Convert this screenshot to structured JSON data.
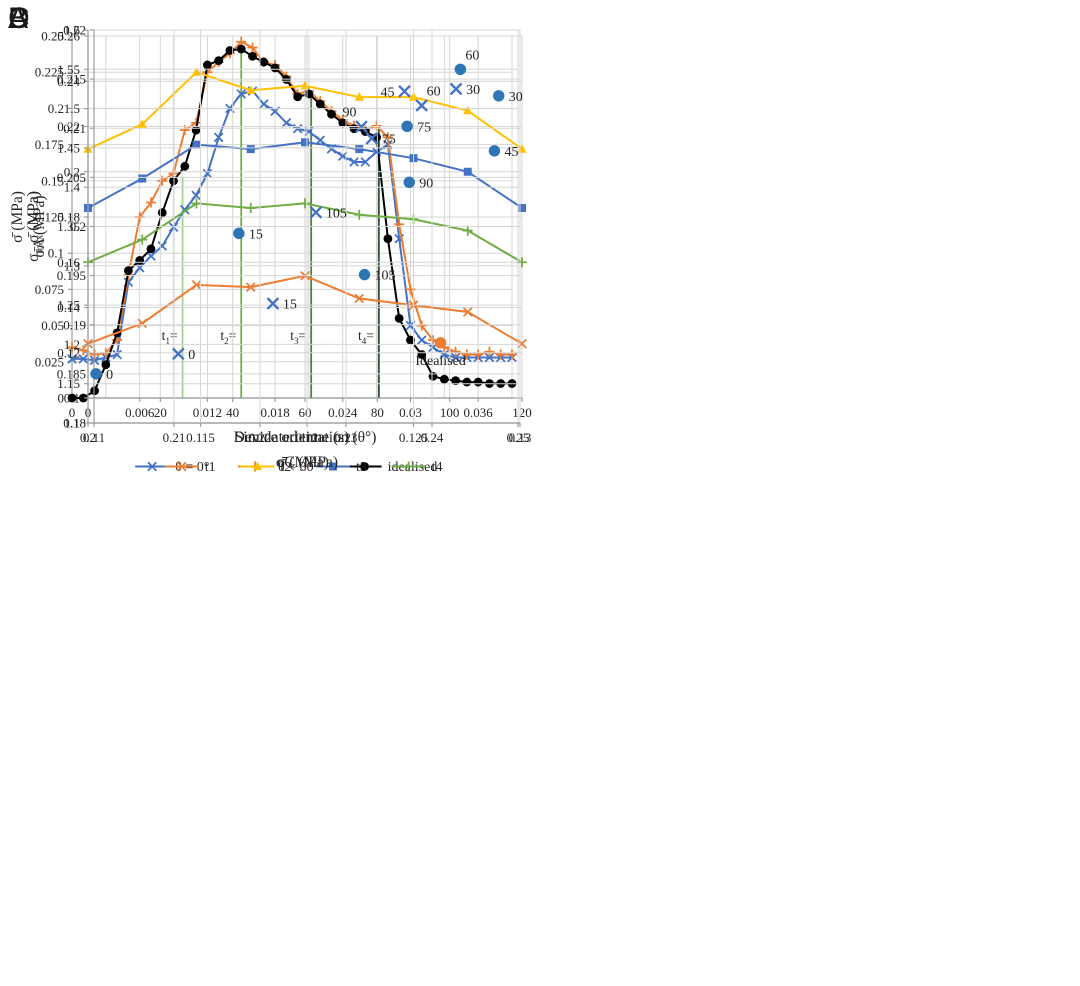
{
  "figure": {
    "background": "#ffffff"
  },
  "chart_data": [
    {
      "panel_label": "A",
      "type": "line",
      "xlabel": "Simulated time (s)",
      "ylabel": "σ̄ (MPa)",
      "xlim": [
        0,
        0.039
      ],
      "x_tick_step": 0.006,
      "x_grid_step": 0.003,
      "ylim": [
        0,
        0.25
      ],
      "y_tick_step": 0.025,
      "y_grid_step": 0.025,
      "legend": true,
      "x": [
        0,
        0.001,
        0.002,
        0.003,
        0.004,
        0.005,
        0.006,
        0.007,
        0.008,
        0.009,
        0.01,
        0.011,
        0.012,
        0.013,
        0.014,
        0.015,
        0.016,
        0.017,
        0.018,
        0.019,
        0.02,
        0.021,
        0.022,
        0.023,
        0.024,
        0.025,
        0.026,
        0.027,
        0.028,
        0.029,
        0.03,
        0.031,
        0.032,
        0.033,
        0.034,
        0.035,
        0.036,
        0.037,
        0.038,
        0.039
      ],
      "series": [
        {
          "name": "θ = 0°",
          "color": "#4472C4",
          "marker": "x",
          "values": [
            0.027,
            0.027,
            0.026,
            0.028,
            0.03,
            0.08,
            0.09,
            0.098,
            0.105,
            0.118,
            0.13,
            0.14,
            0.155,
            0.18,
            0.2,
            0.21,
            0.212,
            0.203,
            0.198,
            0.19,
            0.186,
            0.184,
            0.178,
            0.172,
            0.167,
            0.163,
            0.163,
            0.17,
            0.175,
            0.11,
            0.05,
            0.04,
            0.035,
            0.03,
            0.028,
            0.028,
            0.028,
            0.028,
            0.028,
            0.028
          ]
        },
        {
          "name": "θ = 30°",
          "color": "#ED7D31",
          "marker": "plus",
          "values": [
            0.035,
            0.033,
            0.03,
            0.031,
            0.04,
            0.085,
            0.125,
            0.135,
            0.15,
            0.155,
            0.185,
            0.19,
            0.225,
            0.232,
            0.238,
            0.246,
            0.242,
            0.232,
            0.23,
            0.222,
            0.21,
            0.212,
            0.205,
            0.198,
            0.192,
            0.188,
            0.185,
            0.188,
            0.18,
            0.12,
            0.075,
            0.05,
            0.04,
            0.035,
            0.032,
            0.03,
            0.03,
            0.032,
            0.03,
            0.03
          ]
        },
        {
          "name": "idealised",
          "color": "#000000",
          "marker": "circle",
          "values": [
            0,
            0,
            0.005,
            0.023,
            0.045,
            0.088,
            0.095,
            0.103,
            0.128,
            0.15,
            0.16,
            0.185,
            0.23,
            0.233,
            0.24,
            0.241,
            0.236,
            0.232,
            0.228,
            0.22,
            0.208,
            0.21,
            0.203,
            0.196,
            0.19,
            0.186,
            0.184,
            0.18,
            0.11,
            0.055,
            0.04,
            0.03,
            0.015,
            0.013,
            0.012,
            0.011,
            0.011,
            0.01,
            0.01,
            0.01
          ]
        }
      ],
      "annotations": [
        {
          "x": 0.0098,
          "y_top": 0.153,
          "label": "t_{1}=",
          "label_y": 0.04,
          "color": "#A9D18E"
        },
        {
          "x": 0.015,
          "y_top": 0.246,
          "label": "t_{2}=",
          "label_y": 0.04,
          "color": "#70AD47"
        },
        {
          "x": 0.0212,
          "y_top": 0.212,
          "label": "t_{3}=",
          "label_y": 0.04,
          "color": "#538135"
        },
        {
          "x": 0.0272,
          "y_top": 0.188,
          "label": "t_{4}=",
          "label_y": 0.04,
          "color": "#2F5233"
        }
      ]
    },
    {
      "panel_label": "B",
      "type": "line",
      "xlabel": "Device orientation (θ°)",
      "ylabel": "σ̄ (MPa)",
      "xlim": [
        0,
        120
      ],
      "x_tick_step": 20,
      "x_grid_step": 20,
      "ylim": [
        0.1,
        0.26
      ],
      "y_tick_step": 0.02,
      "y_grid_step": 0.02,
      "legend": true,
      "x": [
        0,
        15,
        30,
        45,
        60,
        75,
        90,
        105,
        120
      ],
      "series": [
        {
          "name": "t1",
          "color": "#ED7D31",
          "marker": "x",
          "values": [
            0.124,
            0.133,
            0.15,
            0.149,
            0.154,
            0.144,
            0.141,
            0.138,
            0.124
          ]
        },
        {
          "name": "t2",
          "color": "#FFC000",
          "marker": "triangle",
          "values": [
            0.21,
            0.221,
            0.244,
            0.236,
            0.238,
            0.233,
            0.233,
            0.227,
            0.21
          ]
        },
        {
          "name": "t3",
          "color": "#4472C4",
          "marker": "square",
          "values": [
            0.184,
            0.197,
            0.212,
            0.21,
            0.213,
            0.21,
            0.206,
            0.2,
            0.184
          ]
        },
        {
          "name": "t4",
          "color": "#70AD47",
          "marker": "plus",
          "values": [
            0.16,
            0.17,
            0.186,
            0.184,
            0.186,
            0.181,
            0.179,
            0.174,
            0.16
          ]
        }
      ]
    },
    {
      "panel_label": "C",
      "type": "scatter",
      "xlabel": "σ̄ (MPa)",
      "ylabel": "σ_{max} (MPa)",
      "xlim": [
        0.2,
        0.25
      ],
      "x_tick_step": 0.01,
      "x_grid_step": 0.01,
      "ylim": [
        1.1,
        1.6
      ],
      "y_tick_step": 0.05,
      "y_grid_step": 0.05,
      "points": [
        {
          "x": 0.2105,
          "y": 1.188,
          "label": "0",
          "marker": "x",
          "color": "#4472C4",
          "label_pos": "right"
        },
        {
          "x": 0.2215,
          "y": 1.252,
          "label": "15",
          "marker": "x",
          "color": "#4472C4",
          "label_pos": "right"
        },
        {
          "x": 0.2265,
          "y": 1.368,
          "label": "105",
          "marker": "x",
          "color": "#4472C4",
          "label_pos": "right"
        },
        {
          "x": 0.233,
          "y": 1.462,
          "label": "75",
          "marker": "x",
          "color": "#4472C4",
          "label_pos": "right"
        },
        {
          "x": 0.2318,
          "y": 1.477,
          "label": "90",
          "marker": "x",
          "color": "#4472C4",
          "label_pos": "above-left"
        },
        {
          "x": 0.2368,
          "y": 1.522,
          "label": "45",
          "marker": "x",
          "color": "#4472C4",
          "label_pos": "left"
        },
        {
          "x": 0.2388,
          "y": 1.504,
          "label": "60",
          "marker": "x",
          "color": "#4472C4",
          "label_pos": "above-right"
        },
        {
          "x": 0.2428,
          "y": 1.525,
          "label": "30",
          "marker": "x",
          "color": "#4472C4",
          "label_pos": "right"
        },
        {
          "x": 0.241,
          "y": 1.202,
          "label": "Idealised",
          "marker": "circle",
          "color": "#ED7D31",
          "label_pos": "below"
        }
      ]
    },
    {
      "panel_label": "D",
      "type": "scatter",
      "xlabel": "σ̄C (MPa)",
      "ylabel": "σ̄A (MPa)",
      "xlim": [
        0.11,
        0.13
      ],
      "x_tick_step": 0.005,
      "x_grid_step": 0.005,
      "ylim": [
        0.18,
        0.22
      ],
      "y_tick_step": 0.005,
      "y_grid_step": 0.005,
      "points": [
        {
          "x": 0.1101,
          "y": 0.185,
          "label": "0",
          "marker": "circle",
          "color": "#2E75B6",
          "label_pos": "right"
        },
        {
          "x": 0.1168,
          "y": 0.1993,
          "label": "15",
          "marker": "circle",
          "color": "#2E75B6",
          "label_pos": "right"
        },
        {
          "x": 0.1227,
          "y": 0.1951,
          "label": "105",
          "marker": "circle",
          "color": "#2E75B6",
          "label_pos": "right"
        },
        {
          "x": 0.1248,
          "y": 0.2045,
          "label": "90",
          "marker": "circle",
          "color": "#2E75B6",
          "label_pos": "right"
        },
        {
          "x": 0.1247,
          "y": 0.2102,
          "label": "75",
          "marker": "circle",
          "color": "#2E75B6",
          "label_pos": "right"
        },
        {
          "x": 0.1288,
          "y": 0.2077,
          "label": "45",
          "marker": "circle",
          "color": "#2E75B6",
          "label_pos": "right"
        },
        {
          "x": 0.129,
          "y": 0.2133,
          "label": "30",
          "marker": "circle",
          "color": "#2E75B6",
          "label_pos": "right"
        },
        {
          "x": 0.1272,
          "y": 0.216,
          "label": "60",
          "marker": "circle",
          "color": "#2E75B6",
          "label_pos": "above-right"
        }
      ]
    }
  ]
}
